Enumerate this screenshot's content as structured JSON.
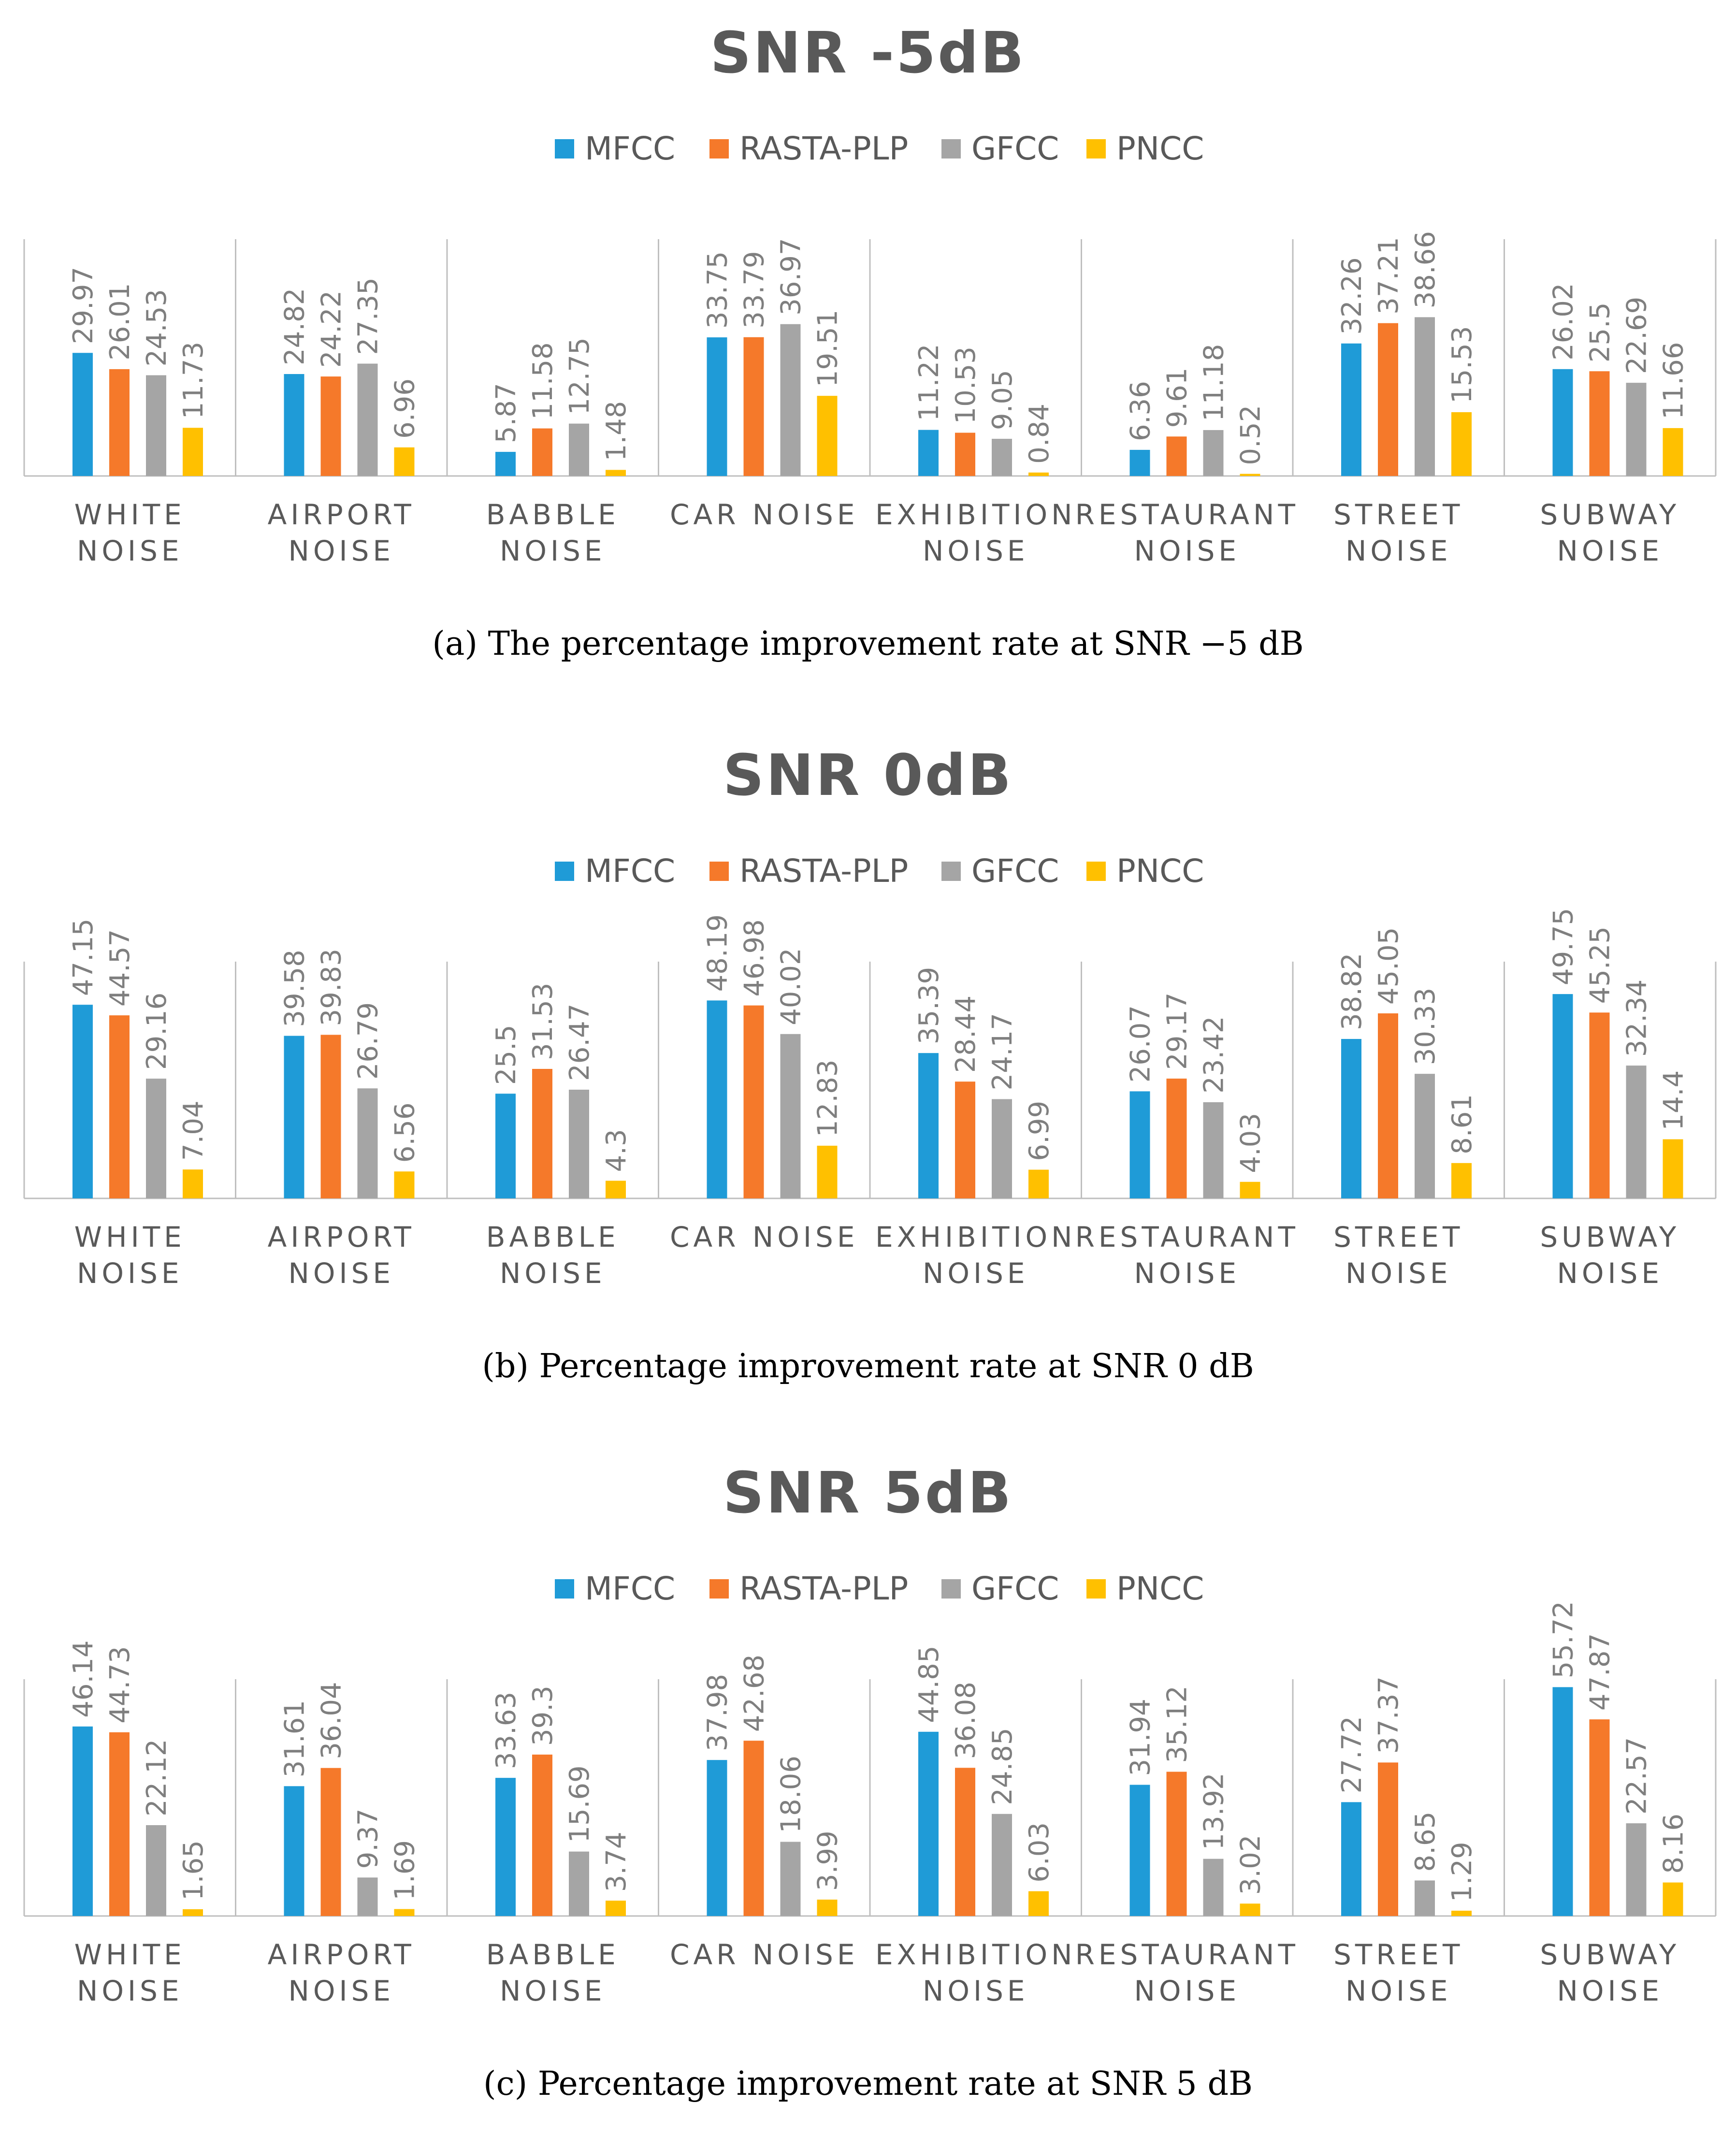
{
  "colors": {
    "MFCC": "#1f9bd7",
    "RASTA-PLP": "#f5792a",
    "GFCC": "#a5a5a5",
    "PNCC": "#ffc000",
    "axis": "#bfbfbf",
    "title": "#595959",
    "label": "#7f7f7f"
  },
  "chart_data": [
    {
      "type": "bar",
      "title": "SNR -5dB",
      "caption": "(a) The percentage improvement rate at SNR −5 dB",
      "legend": [
        "MFCC",
        "RASTA-PLP",
        "GFCC",
        "PNCC"
      ],
      "categories": [
        [
          "WHITE",
          "NOISE"
        ],
        [
          "AIRPORT",
          "NOISE"
        ],
        [
          "BABBLE",
          "NOISE"
        ],
        [
          "CAR NOISE"
        ],
        [
          "EXHIBITION",
          "NOISE"
        ],
        [
          "RESTAURANT",
          "NOISE"
        ],
        [
          "STREET",
          "NOISE"
        ],
        [
          "SUBWAY",
          "NOISE"
        ]
      ],
      "series": [
        {
          "name": "MFCC",
          "values": [
            29.97,
            24.82,
            5.87,
            33.75,
            11.22,
            6.36,
            32.26,
            26.02
          ]
        },
        {
          "name": "RASTA-PLP",
          "values": [
            26.01,
            24.22,
            11.58,
            33.79,
            10.53,
            9.61,
            37.21,
            25.5
          ]
        },
        {
          "name": "GFCC",
          "values": [
            24.53,
            27.35,
            12.75,
            36.97,
            9.05,
            11.18,
            38.66,
            22.69
          ]
        },
        {
          "name": "PNCC",
          "values": [
            11.73,
            6.96,
            1.48,
            19.51,
            0.84,
            0.52,
            15.53,
            11.66
          ]
        }
      ],
      "ylim": [
        0,
        60
      ]
    },
    {
      "type": "bar",
      "title": "SNR 0dB",
      "caption": "(b) Percentage improvement rate at SNR 0 dB",
      "legend": [
        "MFCC",
        "RASTA-PLP",
        "GFCC",
        "PNCC"
      ],
      "categories": [
        [
          "WHITE",
          "NOISE"
        ],
        [
          "AIRPORT",
          "NOISE"
        ],
        [
          "BABBLE",
          "NOISE"
        ],
        [
          "CAR NOISE"
        ],
        [
          "EXHIBITION",
          "NOISE"
        ],
        [
          "RESTAURANT",
          "NOISE"
        ],
        [
          "STREET",
          "NOISE"
        ],
        [
          "SUBWAY",
          "NOISE"
        ]
      ],
      "series": [
        {
          "name": "MFCC",
          "values": [
            47.15,
            39.58,
            25.5,
            48.19,
            35.39,
            26.07,
            38.82,
            49.75
          ]
        },
        {
          "name": "RASTA-PLP",
          "values": [
            44.57,
            39.83,
            31.53,
            46.98,
            28.44,
            29.17,
            45.05,
            45.25
          ]
        },
        {
          "name": "GFCC",
          "values": [
            29.16,
            26.79,
            26.47,
            40.02,
            24.17,
            23.42,
            30.33,
            32.34
          ]
        },
        {
          "name": "PNCC",
          "values": [
            7.04,
            6.56,
            4.3,
            12.83,
            6.99,
            4.03,
            8.61,
            14.4
          ]
        }
      ],
      "ylim": [
        0,
        60
      ]
    },
    {
      "type": "bar",
      "title": "SNR 5dB",
      "caption": "(c) Percentage improvement rate at SNR 5 dB",
      "legend": [
        "MFCC",
        "RASTA-PLP",
        "GFCC",
        "PNCC"
      ],
      "categories": [
        [
          "WHITE",
          "NOISE"
        ],
        [
          "AIRPORT",
          "NOISE"
        ],
        [
          "BABBLE",
          "NOISE"
        ],
        [
          "CAR NOISE"
        ],
        [
          "EXHIBITION",
          "NOISE"
        ],
        [
          "RESTAURANT",
          "NOISE"
        ],
        [
          "STREET",
          "NOISE"
        ],
        [
          "SUBWAY",
          "NOISE"
        ]
      ],
      "series": [
        {
          "name": "MFCC",
          "values": [
            46.14,
            31.61,
            33.63,
            37.98,
            44.85,
            31.94,
            27.72,
            55.72
          ]
        },
        {
          "name": "RASTA-PLP",
          "values": [
            44.73,
            36.04,
            39.3,
            42.68,
            36.08,
            35.12,
            37.37,
            47.87
          ]
        },
        {
          "name": "GFCC",
          "values": [
            22.12,
            9.37,
            15.69,
            18.06,
            24.85,
            13.92,
            8.65,
            22.57
          ]
        },
        {
          "name": "PNCC",
          "values": [
            1.65,
            1.69,
            3.74,
            3.99,
            6.03,
            3.02,
            1.29,
            8.16
          ]
        }
      ],
      "ylim": [
        0,
        60
      ]
    }
  ]
}
